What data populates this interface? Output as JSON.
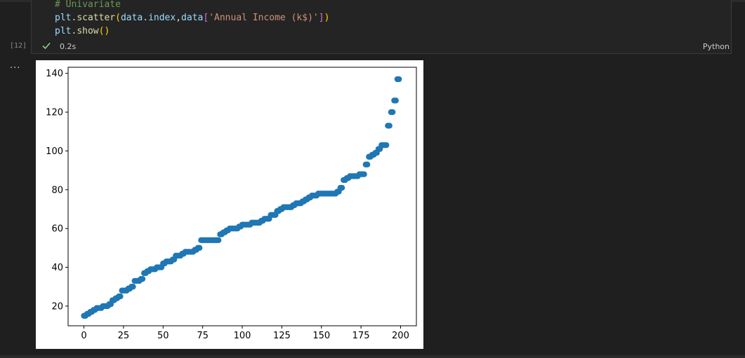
{
  "cell": {
    "code_lines": [
      {
        "parts": [
          {
            "text": "# Univariate",
            "cls": "c-comment"
          }
        ]
      },
      {
        "parts": [
          {
            "text": "plt",
            "cls": "c-var"
          },
          {
            "text": ".",
            "cls": ""
          },
          {
            "text": "scatter",
            "cls": "c-fn"
          },
          {
            "text": "(",
            "cls": "c-br1"
          },
          {
            "text": "data",
            "cls": "c-var"
          },
          {
            "text": ".",
            "cls": ""
          },
          {
            "text": "index",
            "cls": "c-var"
          },
          {
            "text": ",",
            "cls": ""
          },
          {
            "text": "data",
            "cls": "c-var"
          },
          {
            "text": "[",
            "cls": "c-br2"
          },
          {
            "text": "'Annual Income (k$)'",
            "cls": "c-str"
          },
          {
            "text": "]",
            "cls": "c-br2"
          },
          {
            "text": ")",
            "cls": "c-br1"
          }
        ]
      },
      {
        "parts": [
          {
            "text": "plt",
            "cls": "c-var"
          },
          {
            "text": ".",
            "cls": ""
          },
          {
            "text": "show",
            "cls": "c-fn"
          },
          {
            "text": "()",
            "cls": "c-br1"
          }
        ]
      }
    ],
    "execution_count": "[12]",
    "status_icon": "check-icon",
    "execution_time": "0.2s",
    "language": "Python",
    "output_more": "..."
  },
  "colors": {
    "marker": "#1f77b4",
    "check": "#89d185"
  },
  "chart_data": {
    "type": "scatter",
    "title": "",
    "xlabel": "",
    "ylabel": "",
    "xlim": [
      -10,
      210
    ],
    "ylim": [
      9.85,
      143.15
    ],
    "xticks": [
      0,
      25,
      50,
      75,
      100,
      125,
      150,
      175,
      200
    ],
    "yticks": [
      20,
      40,
      60,
      80,
      100,
      120,
      140
    ],
    "grid": false,
    "series": [
      {
        "name": "",
        "x": [
          0,
          1,
          2,
          3,
          4,
          5,
          6,
          7,
          8,
          9,
          10,
          11,
          12,
          13,
          14,
          15,
          16,
          17,
          18,
          19,
          20,
          21,
          22,
          23,
          24,
          25,
          26,
          27,
          28,
          29,
          30,
          31,
          32,
          33,
          34,
          35,
          36,
          37,
          38,
          39,
          40,
          41,
          42,
          43,
          44,
          45,
          46,
          47,
          48,
          49,
          50,
          51,
          52,
          53,
          54,
          55,
          56,
          57,
          58,
          59,
          60,
          61,
          62,
          63,
          64,
          65,
          66,
          67,
          68,
          69,
          70,
          71,
          72,
          73,
          74,
          75,
          76,
          77,
          78,
          79,
          80,
          81,
          82,
          83,
          84,
          85,
          86,
          87,
          88,
          89,
          90,
          91,
          92,
          93,
          94,
          95,
          96,
          97,
          98,
          99,
          100,
          101,
          102,
          103,
          104,
          105,
          106,
          107,
          108,
          109,
          110,
          111,
          112,
          113,
          114,
          115,
          116,
          117,
          118,
          119,
          120,
          121,
          122,
          123,
          124,
          125,
          126,
          127,
          128,
          129,
          130,
          131,
          132,
          133,
          134,
          135,
          136,
          137,
          138,
          139,
          140,
          141,
          142,
          143,
          144,
          145,
          146,
          147,
          148,
          149,
          150,
          151,
          152,
          153,
          154,
          155,
          156,
          157,
          158,
          159,
          160,
          161,
          162,
          163,
          164,
          165,
          166,
          167,
          168,
          169,
          170,
          171,
          172,
          173,
          174,
          175,
          176,
          177,
          178,
          179,
          180,
          181,
          182,
          183,
          184,
          185,
          186,
          187,
          188,
          189,
          190,
          191,
          192,
          193,
          194,
          195,
          196,
          197,
          198,
          199
        ],
        "y": [
          15,
          15,
          16,
          16,
          17,
          17,
          18,
          18,
          19,
          19,
          19,
          19,
          20,
          20,
          20,
          20,
          21,
          21,
          23,
          23,
          24,
          24,
          25,
          25,
          28,
          28,
          28,
          28,
          29,
          29,
          30,
          30,
          33,
          33,
          33,
          33,
          34,
          34,
          37,
          37,
          38,
          38,
          39,
          39,
          39,
          39,
          40,
          40,
          40,
          40,
          42,
          42,
          43,
          43,
          43,
          43,
          44,
          44,
          46,
          46,
          46,
          46,
          47,
          47,
          48,
          48,
          48,
          48,
          48,
          48,
          49,
          49,
          50,
          50,
          54,
          54,
          54,
          54,
          54,
          54,
          54,
          54,
          54,
          54,
          54,
          54,
          57,
          57,
          58,
          58,
          59,
          59,
          60,
          60,
          60,
          60,
          60,
          60,
          61,
          61,
          62,
          62,
          62,
          62,
          62,
          62,
          63,
          63,
          63,
          63,
          63,
          63,
          64,
          64,
          65,
          65,
          65,
          65,
          67,
          67,
          67,
          67,
          69,
          69,
          70,
          70,
          71,
          71,
          71,
          71,
          71,
          71,
          72,
          72,
          73,
          73,
          73,
          73,
          74,
          74,
          75,
          75,
          76,
          76,
          77,
          77,
          77,
          77,
          78,
          78,
          78,
          78,
          78,
          78,
          78,
          78,
          78,
          78,
          78,
          78,
          79,
          79,
          81,
          81,
          85,
          85,
          86,
          86,
          87,
          87,
          87,
          87,
          87,
          87,
          88,
          88,
          88,
          88,
          93,
          93,
          97,
          97,
          98,
          98,
          99,
          99,
          101,
          101,
          103,
          103,
          103,
          103,
          113,
          113,
          120,
          120,
          126,
          126,
          137,
          137
        ]
      }
    ]
  }
}
